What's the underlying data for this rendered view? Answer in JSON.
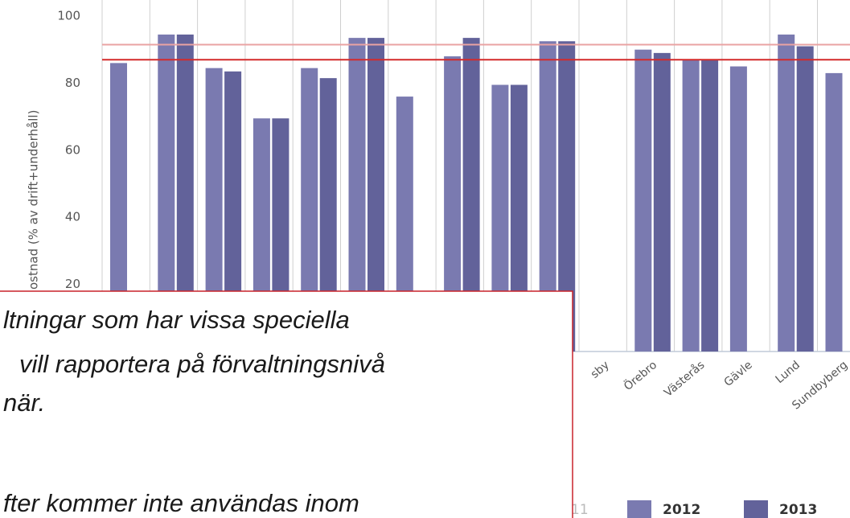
{
  "chart_data": {
    "type": "bar",
    "y_axis_label": "ostnad (% av drift+underhåll)",
    "categories": [
      null,
      null,
      null,
      null,
      null,
      null,
      null,
      null,
      null,
      null,
      "sby",
      "Örebro",
      "Västerås",
      "Gävle",
      "Lund",
      "Sundbyberg"
    ],
    "series": [
      {
        "name": "2012",
        "color": "#7a7ab0",
        "values": [
          86,
          94.5,
          84.5,
          69.5,
          84.5,
          93.5,
          76,
          88,
          79.5,
          92.5,
          null,
          90,
          87,
          85,
          94.5,
          83
        ]
      },
      {
        "name": "2013",
        "color": "#62629a",
        "values": [
          null,
          94.5,
          83.5,
          69.5,
          81.5,
          93.5,
          null,
          93.5,
          79.5,
          92.5,
          null,
          89,
          87,
          null,
          91,
          null
        ]
      }
    ],
    "legend_fragment": "11",
    "reference_lines": [
      {
        "value": 91.5,
        "color": "#e9a3a3"
      },
      {
        "value": 87,
        "color": "#d42a2a"
      }
    ],
    "ylim": [
      0,
      100
    ],
    "yticks": [
      20,
      40,
      60,
      80,
      100
    ],
    "annotation_lines": [
      "ltningar som har vissa speciella",
      "vill rapportera på förvaltningsnivå",
      "när.",
      "fter kommer inte användas inom"
    ]
  }
}
